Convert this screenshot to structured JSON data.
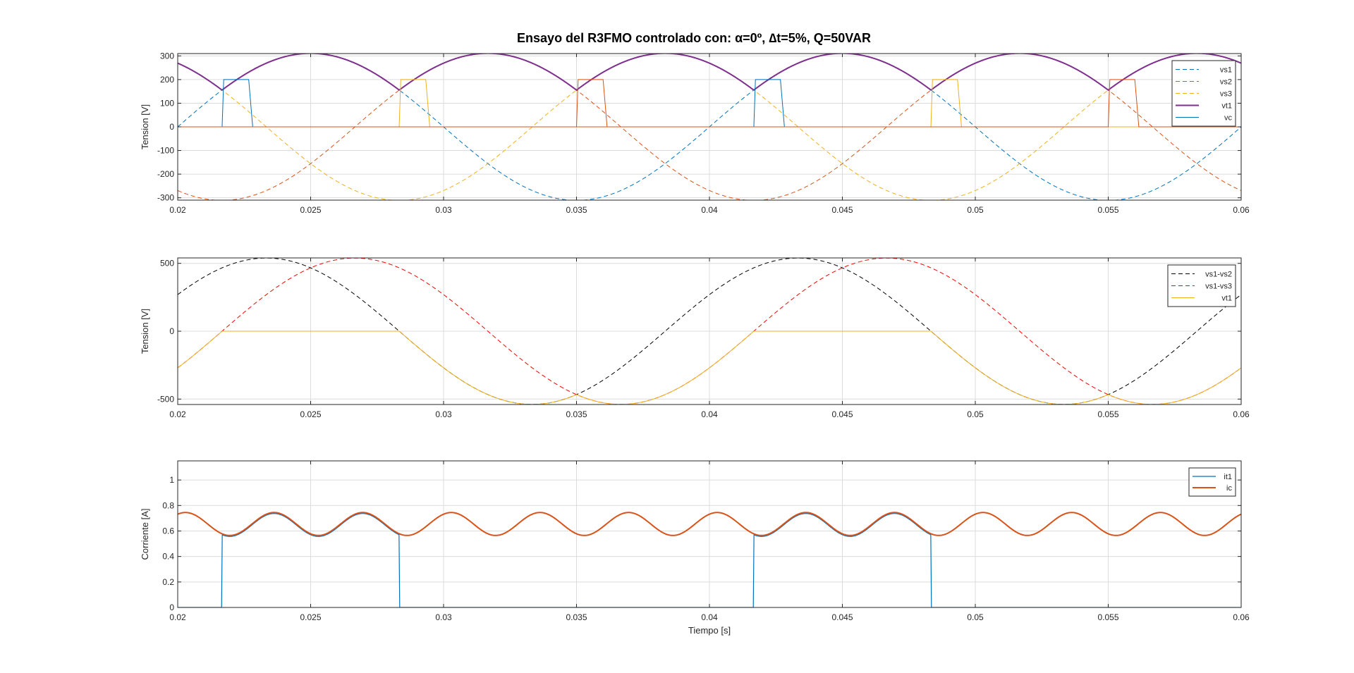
{
  "figure": {
    "title": "Ensayo del R3FMO controlado con: α=0º, ∆t=5%, Q=50VAR",
    "background": "#ffffff",
    "grid_color": "#dcdcdc",
    "axis_color": "#262626"
  },
  "chart_data": [
    {
      "type": "line",
      "id": "tensiones-fase",
      "xlabel": "",
      "ylabel": "Tension [V]",
      "xlim": [
        0.02,
        0.06
      ],
      "ylim": [
        -310,
        310
      ],
      "xticks": [
        0.02,
        0.025,
        0.03,
        0.035,
        0.04,
        0.045,
        0.05,
        0.055,
        0.06
      ],
      "xtick_labels": [
        "0.02",
        "0.025",
        "0.03",
        "0.035",
        "0.04",
        "0.045",
        "0.05",
        "0.055",
        "0.06"
      ],
      "yticks": [
        -300,
        -200,
        -100,
        0,
        100,
        200,
        300
      ],
      "ytick_labels": [
        "-300",
        "-200",
        "-100",
        "0",
        "100",
        "200",
        "300"
      ],
      "grid": true,
      "legend_position": "top-right",
      "model": {
        "frequency_hz": 50,
        "phase_amplitude_v": 311,
        "t0_s": 0.02,
        "gate_pulse_amplitude_v": 200,
        "gate_pulse_width_s": 0.001
      },
      "series": [
        {
          "name": "vs1",
          "kind": "sine",
          "amplitude": 311,
          "phase_deg": 0,
          "color": "#0072BD",
          "dash": "dashed",
          "width": 1
        },
        {
          "name": "vs2",
          "kind": "sine",
          "amplitude": 311,
          "phase_deg": -120,
          "color": "#D95319",
          "dash": "dashed",
          "width": 1
        },
        {
          "name": "vs3",
          "kind": "sine",
          "amplitude": 311,
          "phase_deg": 120,
          "color": "#EDB120",
          "dash": "dashed",
          "width": 1
        },
        {
          "name": "vt1",
          "kind": "max-envelope",
          "color": "#7E2F8E",
          "dash": "solid",
          "width": 2
        },
        {
          "name": "vc",
          "kind": "gate-pulses",
          "color": "#0072BD",
          "dash": "solid",
          "width": 1
        }
      ],
      "gate_pulses": [
        {
          "start": 0.02167,
          "color": "#0072BD"
        },
        {
          "start": 0.02833,
          "color": "#EDB120"
        },
        {
          "start": 0.035,
          "color": "#D95319"
        },
        {
          "start": 0.04167,
          "color": "#0072BD"
        },
        {
          "start": 0.04833,
          "color": "#EDB120"
        },
        {
          "start": 0.055,
          "color": "#D95319"
        }
      ]
    },
    {
      "type": "line",
      "id": "tensiones-linea",
      "xlabel": "",
      "ylabel": "Tension [V]",
      "xlim": [
        0.02,
        0.06
      ],
      "ylim": [
        -540,
        540
      ],
      "xticks": [
        0.02,
        0.025,
        0.03,
        0.035,
        0.04,
        0.045,
        0.05,
        0.055,
        0.06
      ],
      "xtick_labels": [
        "0.02",
        "0.025",
        "0.03",
        "0.035",
        "0.04",
        "0.045",
        "0.05",
        "0.055",
        "0.06"
      ],
      "yticks": [
        -500,
        0,
        500
      ],
      "ytick_labels": [
        "-500",
        "0",
        "500"
      ],
      "grid": true,
      "legend_position": "top-right",
      "model": {
        "frequency_hz": 50,
        "line_amplitude_v": 539,
        "t0_s": 0.02
      },
      "series": [
        {
          "name": "vs1-vs2",
          "kind": "sine",
          "amplitude": 539,
          "phase_deg": 30,
          "color": "#000000",
          "dash": "dashed",
          "width": 1
        },
        {
          "name": "vs1-vs3",
          "kind": "sine",
          "amplitude": 539,
          "phase_deg": -30,
          "color": "#FF0000",
          "dash": "dashed",
          "width": 1
        },
        {
          "name": "vt1",
          "kind": "thyristor-voltage",
          "color": "#EDB120",
          "dash": "solid",
          "width": 1
        }
      ],
      "conduction_intervals": [
        [
          0.02167,
          0.02833
        ],
        [
          0.04167,
          0.04833
        ]
      ]
    },
    {
      "type": "line",
      "id": "corrientes",
      "xlabel": "Tiempo [s]",
      "ylabel": "Corriente [A]",
      "xlim": [
        0.02,
        0.06
      ],
      "ylim": [
        0,
        1.15
      ],
      "xticks": [
        0.02,
        0.025,
        0.03,
        0.035,
        0.04,
        0.045,
        0.05,
        0.055,
        0.06
      ],
      "xtick_labels": [
        "0.02",
        "0.025",
        "0.03",
        "0.035",
        "0.04",
        "0.045",
        "0.05",
        "0.055",
        "0.06"
      ],
      "yticks": [
        0,
        0.2,
        0.4,
        0.6,
        0.8,
        1
      ],
      "ytick_labels": [
        "0",
        "0.2",
        "0.4",
        "0.6",
        "0.8",
        "1"
      ],
      "grid": true,
      "legend_position": "top-right",
      "model": {
        "frequency_hz": 50,
        "mean_a": 0.655,
        "ripple_a": 0.09,
        "ripple_harmonic": 6,
        "t0_s": 0.02
      },
      "series": [
        {
          "name": "it1",
          "kind": "gated-current",
          "color": "#0072BD",
          "dash": "solid",
          "width": 1.2
        },
        {
          "name": "ic",
          "kind": "ripple-current",
          "color": "#D95319",
          "dash": "solid",
          "width": 2
        }
      ],
      "conduction_intervals": [
        [
          0.02167,
          0.02833
        ],
        [
          0.04167,
          0.04833
        ]
      ]
    }
  ]
}
